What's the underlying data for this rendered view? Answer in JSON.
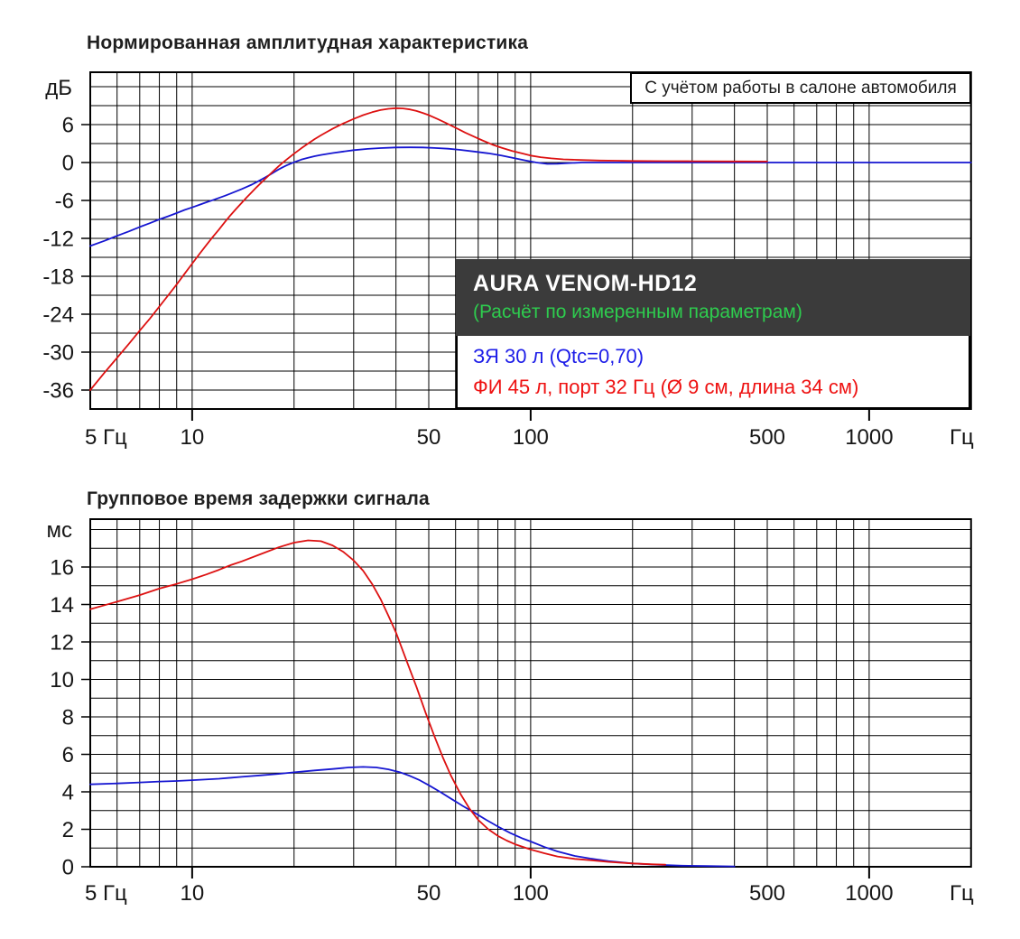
{
  "colors": {
    "sealed": "#1616d1",
    "ported": "#dd1111",
    "sealed_text": "#1d1de8",
    "ported_text": "#ee1111",
    "legend_bg": "#3b3b3b",
    "legend_title": "#ffffff",
    "legend_subtitle": "#2ecc4e",
    "grid": "#000000",
    "text": "#161616"
  },
  "legend": {
    "title": "AURA VENOM-HD12",
    "subtitle": "(Расчёт по измеренным параметрам)",
    "items": [
      {
        "label": "ЗЯ 30 л (Qtc=0,70)",
        "color_key": "sealed_text"
      },
      {
        "label": "ФИ 45 л, порт 32 Гц (Ø 9 см, длина 34 см)",
        "color_key": "ported_text"
      }
    ]
  },
  "chart_data": [
    {
      "type": "line",
      "title": "Нормированная амплитудная характеристика",
      "annotation": "С учётом работы в салоне автомобиля",
      "ylabel": "дБ",
      "x_axis": {
        "scale": "log",
        "min": 5,
        "max": 2000,
        "unit": "Гц",
        "gridlines": [
          6,
          7,
          8,
          9,
          10,
          20,
          30,
          40,
          50,
          60,
          70,
          80,
          90,
          100,
          200,
          300,
          400,
          500,
          600,
          700,
          800,
          900,
          1000
        ],
        "tick_marks": [
          10,
          100,
          1000
        ],
        "labels": [
          {
            "f": 5,
            "text": "5 Гц"
          },
          {
            "f": 10,
            "text": "10"
          },
          {
            "f": 50,
            "text": "50"
          },
          {
            "f": 100,
            "text": "100"
          },
          {
            "f": 500,
            "text": "500"
          },
          {
            "f": 1000,
            "text": "1000"
          }
        ],
        "end_label": "Гц"
      },
      "y_axis": {
        "unit": "дБ",
        "min": -39,
        "max": 14.3,
        "grid_from": -36,
        "grid_to": 12,
        "grid_step": 3,
        "labels": [
          6,
          0,
          -6,
          -12,
          -18,
          -24,
          -30,
          -36
        ]
      },
      "series": [
        {
          "name": "ЗЯ 30 л (Qtc=0,70)",
          "color_key": "sealed",
          "points": [
            [
              5,
              -13.2
            ],
            [
              5.5,
              -12.4
            ],
            [
              6,
              -11.6
            ],
            [
              6.5,
              -10.9
            ],
            [
              7,
              -10.2
            ],
            [
              7.5,
              -9.6
            ],
            [
              8,
              -9.0
            ],
            [
              8.5,
              -8.5
            ],
            [
              9,
              -8.0
            ],
            [
              9.5,
              -7.5
            ],
            [
              10,
              -7.1
            ],
            [
              10.5,
              -6.7
            ],
            [
              11,
              -6.3
            ],
            [
              11.5,
              -5.95
            ],
            [
              12,
              -5.6
            ],
            [
              12.5,
              -5.25
            ],
            [
              13,
              -4.9
            ],
            [
              13.5,
              -4.55
            ],
            [
              14,
              -4.2
            ],
            [
              14.5,
              -3.85
            ],
            [
              15,
              -3.5
            ],
            [
              15.5,
              -3.1
            ],
            [
              16,
              -2.7
            ],
            [
              16.5,
              -2.3
            ],
            [
              17,
              -1.9
            ],
            [
              17.5,
              -1.5
            ],
            [
              18,
              -1.1
            ],
            [
              18.5,
              -0.75
            ],
            [
              19,
              -0.45
            ],
            [
              19.5,
              -0.2
            ],
            [
              20,
              0.05
            ],
            [
              21,
              0.45
            ],
            [
              22,
              0.75
            ],
            [
              23,
              1.0
            ],
            [
              24,
              1.2
            ],
            [
              26,
              1.5
            ],
            [
              28,
              1.75
            ],
            [
              30,
              1.95
            ],
            [
              33,
              2.15
            ],
            [
              36,
              2.28
            ],
            [
              40,
              2.38
            ],
            [
              44,
              2.4
            ],
            [
              48,
              2.38
            ],
            [
              52,
              2.3
            ],
            [
              57,
              2.18
            ],
            [
              62,
              2.0
            ],
            [
              68,
              1.75
            ],
            [
              75,
              1.45
            ],
            [
              82,
              1.1
            ],
            [
              90,
              0.65
            ],
            [
              97,
              0.3
            ],
            [
              104,
              0
            ],
            [
              112,
              -0.22
            ],
            [
              120,
              -0.2
            ],
            [
              130,
              -0.08
            ],
            [
              142,
              0
            ],
            [
              170,
              0
            ],
            [
              200,
              0
            ],
            [
              300,
              0
            ],
            [
              500,
              0
            ],
            [
              1000,
              0
            ],
            [
              2000,
              0
            ]
          ]
        },
        {
          "name": "ФИ 45 л, порт 32 Гц (Ø 9 см, длина 34 см)",
          "color_key": "ported",
          "points": [
            [
              5,
              -36
            ],
            [
              5.5,
              -33.3
            ],
            [
              6,
              -30.9
            ],
            [
              6.5,
              -28.7
            ],
            [
              7,
              -26.6
            ],
            [
              7.5,
              -24.7
            ],
            [
              8,
              -22.8
            ],
            [
              8.5,
              -21.0
            ],
            [
              9,
              -19.3
            ],
            [
              9.5,
              -17.6
            ],
            [
              10,
              -16.0
            ],
            [
              10.5,
              -14.5
            ],
            [
              11,
              -13.1
            ],
            [
              11.5,
              -11.8
            ],
            [
              12,
              -10.6
            ],
            [
              12.5,
              -9.4
            ],
            [
              13,
              -8.3
            ],
            [
              13.5,
              -7.3
            ],
            [
              14,
              -6.4
            ],
            [
              14.5,
              -5.5
            ],
            [
              15,
              -4.7
            ],
            [
              15.5,
              -3.9
            ],
            [
              16,
              -3.2
            ],
            [
              16.5,
              -2.5
            ],
            [
              17,
              -1.85
            ],
            [
              17.5,
              -1.2
            ],
            [
              18,
              -0.6
            ],
            [
              18.5,
              -0.05
            ],
            [
              19,
              0.45
            ],
            [
              20,
              1.4
            ],
            [
              21,
              2.25
            ],
            [
              22,
              3.0
            ],
            [
              23,
              3.7
            ],
            [
              24,
              4.3
            ],
            [
              25,
              4.85
            ],
            [
              26,
              5.35
            ],
            [
              28,
              6.2
            ],
            [
              30,
              6.9
            ],
            [
              32,
              7.5
            ],
            [
              34,
              7.95
            ],
            [
              36,
              8.3
            ],
            [
              38,
              8.5
            ],
            [
              40,
              8.6
            ],
            [
              42,
              8.55
            ],
            [
              44,
              8.4
            ],
            [
              46,
              8.15
            ],
            [
              48,
              7.85
            ],
            [
              50,
              7.5
            ],
            [
              53,
              6.9
            ],
            [
              56,
              6.3
            ],
            [
              60,
              5.5
            ],
            [
              64,
              4.75
            ],
            [
              68,
              4.1
            ],
            [
              72,
              3.5
            ],
            [
              77,
              2.85
            ],
            [
              82,
              2.35
            ],
            [
              88,
              1.85
            ],
            [
              94,
              1.45
            ],
            [
              100,
              1.1
            ],
            [
              107,
              0.85
            ],
            [
              115,
              0.65
            ],
            [
              125,
              0.5
            ],
            [
              140,
              0.4
            ],
            [
              160,
              0.32
            ],
            [
              180,
              0.28
            ],
            [
              200,
              0.25
            ],
            [
              250,
              0.22
            ],
            [
              300,
              0.2
            ],
            [
              400,
              0.17
            ],
            [
              500,
              0.15
            ]
          ]
        }
      ]
    },
    {
      "type": "line",
      "title": "Групповое время задержки сигнала",
      "annotation": "",
      "ylabel": "мс",
      "x_axis": {
        "scale": "log",
        "min": 5,
        "max": 2000,
        "unit": "Гц",
        "gridlines": [
          6,
          7,
          8,
          9,
          10,
          20,
          30,
          40,
          50,
          60,
          70,
          80,
          90,
          100,
          200,
          300,
          400,
          500,
          600,
          700,
          800,
          900,
          1000
        ],
        "tick_marks": [
          10,
          100,
          1000
        ],
        "labels": [
          {
            "f": 5,
            "text": "5 Гц"
          },
          {
            "f": 10,
            "text": "10"
          },
          {
            "f": 50,
            "text": "50"
          },
          {
            "f": 100,
            "text": "100"
          },
          {
            "f": 500,
            "text": "500"
          },
          {
            "f": 1000,
            "text": "1000"
          }
        ],
        "end_label": "Гц"
      },
      "y_axis": {
        "unit": "мс",
        "min": 0,
        "max": 18.55,
        "grid_from": 1,
        "grid_to": 18,
        "grid_step": 1,
        "labels": [
          16,
          14,
          12,
          10,
          8,
          6,
          4,
          2,
          0
        ]
      },
      "series": [
        {
          "name": "ЗЯ 30 л (Qtc=0,70)",
          "color_key": "sealed",
          "points": [
            [
              5,
              4.4
            ],
            [
              6,
              4.45
            ],
            [
              7,
              4.5
            ],
            [
              8,
              4.55
            ],
            [
              9,
              4.58
            ],
            [
              10,
              4.62
            ],
            [
              12,
              4.7
            ],
            [
              14,
              4.8
            ],
            [
              16,
              4.88
            ],
            [
              18,
              4.96
            ],
            [
              20,
              5.04
            ],
            [
              23,
              5.14
            ],
            [
              26,
              5.22
            ],
            [
              29,
              5.3
            ],
            [
              32,
              5.33
            ],
            [
              35,
              5.3
            ],
            [
              38,
              5.2
            ],
            [
              41,
              5.05
            ],
            [
              44,
              4.85
            ],
            [
              47,
              4.62
            ],
            [
              50,
              4.35
            ],
            [
              54,
              4.0
            ],
            [
              58,
              3.65
            ],
            [
              63,
              3.25
            ],
            [
              68,
              2.9
            ],
            [
              74,
              2.5
            ],
            [
              80,
              2.15
            ],
            [
              87,
              1.8
            ],
            [
              95,
              1.5
            ],
            [
              100,
              1.35
            ],
            [
              110,
              1.05
            ],
            [
              120,
              0.82
            ],
            [
              135,
              0.58
            ],
            [
              150,
              0.44
            ],
            [
              170,
              0.3
            ],
            [
              200,
              0.18
            ],
            [
              240,
              0.1
            ],
            [
              280,
              0.06
            ],
            [
              330,
              0.04
            ],
            [
              400,
              0.02
            ]
          ]
        },
        {
          "name": "ФИ 45 л, порт 32 Гц (Ø 9 см, длина 34 см)",
          "color_key": "ported",
          "points": [
            [
              5,
              13.75
            ],
            [
              6,
              14.15
            ],
            [
              7,
              14.5
            ],
            [
              8,
              14.85
            ],
            [
              9,
              15.1
            ],
            [
              10,
              15.35
            ],
            [
              11,
              15.6
            ],
            [
              12,
              15.85
            ],
            [
              13,
              16.1
            ],
            [
              14,
              16.3
            ],
            [
              16,
              16.7
            ],
            [
              18,
              17.05
            ],
            [
              20,
              17.3
            ],
            [
              22,
              17.42
            ],
            [
              24,
              17.38
            ],
            [
              26,
              17.15
            ],
            [
              28,
              16.8
            ],
            [
              30,
              16.35
            ],
            [
              32,
              15.8
            ],
            [
              34,
              15.1
            ],
            [
              36,
              14.3
            ],
            [
              38,
              13.4
            ],
            [
              40,
              12.5
            ],
            [
              43,
              11.0
            ],
            [
              46,
              9.6
            ],
            [
              49,
              8.2
            ],
            [
              52,
              6.95
            ],
            [
              55,
              5.85
            ],
            [
              58,
              4.9
            ],
            [
              62,
              3.9
            ],
            [
              66,
              3.1
            ],
            [
              70,
              2.5
            ],
            [
              75,
              2.0
            ],
            [
              80,
              1.65
            ],
            [
              85,
              1.4
            ],
            [
              90,
              1.2
            ],
            [
              100,
              0.92
            ],
            [
              110,
              0.72
            ],
            [
              120,
              0.55
            ],
            [
              135,
              0.42
            ],
            [
              150,
              0.35
            ],
            [
              170,
              0.26
            ],
            [
              200,
              0.18
            ],
            [
              230,
              0.13
            ],
            [
              250,
              0.11
            ]
          ]
        }
      ]
    }
  ]
}
